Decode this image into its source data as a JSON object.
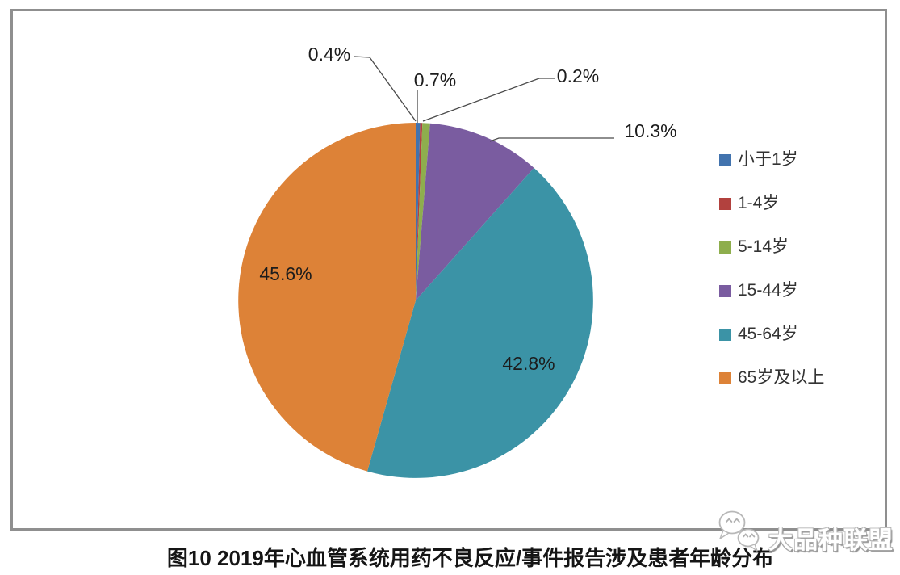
{
  "chart_data": {
    "type": "pie",
    "title": "图10 2019年心血管系统用药不良反应/事件报告涉及患者年龄分布",
    "categories": [
      "小于1岁",
      "1-4岁",
      "5-14岁",
      "15-44岁",
      "45-64岁",
      "65岁及以上"
    ],
    "values": [
      0.4,
      0.2,
      0.7,
      10.3,
      42.8,
      45.6
    ],
    "percent_labels": [
      "0.4%",
      "0.2%",
      "0.7%",
      "10.3%",
      "42.8%",
      "45.6%"
    ],
    "unit": "%",
    "colors": [
      "#4273ae",
      "#b2413e",
      "#8eae4d",
      "#7a5ca0",
      "#3b93a6",
      "#dd8237"
    ],
    "legend_position": "right",
    "start_angle_deg": 0,
    "direction": "clockwise",
    "frame_border_color": "#8f8f8f"
  },
  "watermark": {
    "text": "大品种联盟",
    "icon": "chat-bubbles-icon"
  }
}
